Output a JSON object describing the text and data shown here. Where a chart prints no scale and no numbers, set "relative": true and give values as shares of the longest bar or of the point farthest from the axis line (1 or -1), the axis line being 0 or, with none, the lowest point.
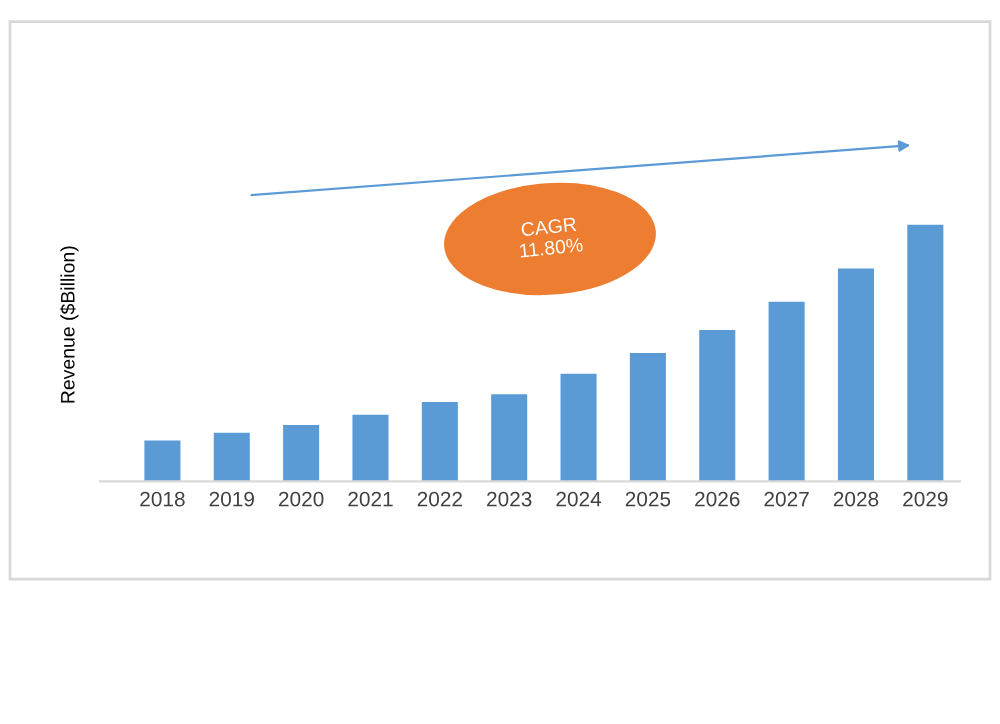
{
  "chart_data": {
    "type": "bar",
    "ylabel": "Revenue ($Billion)",
    "relative": true,
    "grid": false,
    "legend": false,
    "categories": [
      "2018",
      "2019",
      "2020",
      "2021",
      "2022",
      "2023",
      "2024",
      "2025",
      "2026",
      "2027",
      "2028",
      "2029"
    ],
    "values": [
      0.16,
      0.19,
      0.22,
      0.26,
      0.31,
      0.34,
      0.42,
      0.5,
      0.59,
      0.7,
      0.83,
      1.0
    ],
    "color": "#5b9bd5",
    "annotations": [
      "CAGR\n11.80%"
    ]
  }
}
